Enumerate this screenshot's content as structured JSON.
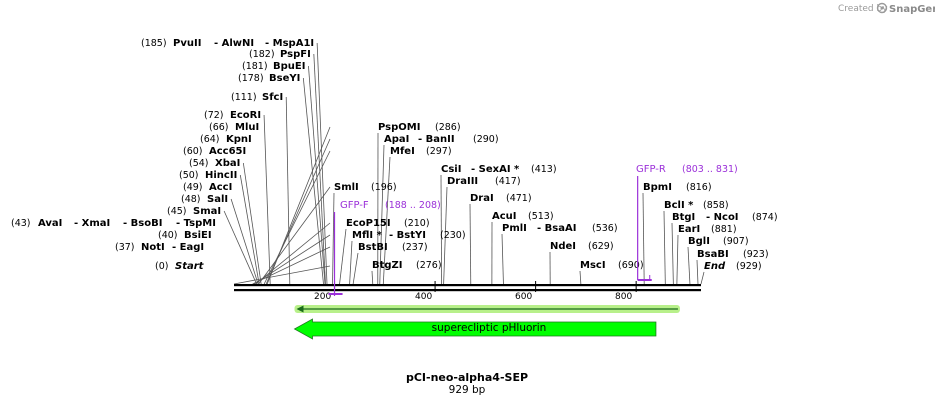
{
  "credit": {
    "prefix": "Created by",
    "brand": "SnapGene"
  },
  "map": {
    "name": "pCI-neo-alpha4-SEP",
    "length_label": "929 bp",
    "length": 929
  },
  "ruler": {
    "ticks": [
      200,
      400,
      600,
      800
    ],
    "tick_labels": [
      "200",
      "400",
      "600",
      "800"
    ]
  },
  "sites": [
    {
      "name": "Start",
      "pos": 0,
      "pos_label": "(0)",
      "italic": true
    },
    {
      "name": "NotI",
      "pos": 37,
      "pos_label": "(37)",
      "aka": "EagI"
    },
    {
      "name": "BsiEI",
      "pos": 40,
      "pos_label": "(40)"
    },
    {
      "name": "AvaI",
      "pos": 43,
      "pos_label": "(43)",
      "aka": "XmaI",
      "aka2": "BsoBI",
      "aka3": "TspMI"
    },
    {
      "name": "SmaI",
      "pos": 45,
      "pos_label": "(45)"
    },
    {
      "name": "SalI",
      "pos": 48,
      "pos_label": "(48)"
    },
    {
      "name": "AccI",
      "pos": 49,
      "pos_label": "(49)"
    },
    {
      "name": "HincII",
      "pos": 50,
      "pos_label": "(50)"
    },
    {
      "name": "XbaI",
      "pos": 54,
      "pos_label": "(54)"
    },
    {
      "name": "Acc65I",
      "pos": 60,
      "pos_label": "(60)"
    },
    {
      "name": "KpnI",
      "pos": 64,
      "pos_label": "(64)"
    },
    {
      "name": "MluI",
      "pos": 66,
      "pos_label": "(66)"
    },
    {
      "name": "EcoRI",
      "pos": 72,
      "pos_label": "(72)"
    },
    {
      "name": "SfcI",
      "pos": 111,
      "pos_label": "(111)"
    },
    {
      "name": "BseYI",
      "pos": 178,
      "pos_label": "(178)"
    },
    {
      "name": "BpuEI",
      "pos": 181,
      "pos_label": "(181)"
    },
    {
      "name": "PspFI",
      "pos": 182,
      "pos_label": "(182)"
    },
    {
      "name": "PvuII",
      "pos": 185,
      "pos_label": "(185)",
      "aka": "AlwNI",
      "aka2": "MspA1I"
    },
    {
      "name": "SmlI",
      "pos": 196,
      "pos_label": "(196)"
    },
    {
      "name": "EcoP15I",
      "pos": 210,
      "pos_label": "(210)"
    },
    {
      "name": "MflI *",
      "pos": 230,
      "pos_label": "(230)",
      "aka": "BstYI"
    },
    {
      "name": "BstBI",
      "pos": 237,
      "pos_label": "(237)"
    },
    {
      "name": "BtgZI",
      "pos": 276,
      "pos_label": "(276)"
    },
    {
      "name": "PspOMI",
      "pos": 286,
      "pos_label": "(286)"
    },
    {
      "name": "ApaI",
      "pos": 290,
      "pos_label": "(290)",
      "aka": "BanII"
    },
    {
      "name": "MfeI",
      "pos": 297,
      "pos_label": "(297)"
    },
    {
      "name": "CsiI",
      "pos": 413,
      "pos_label": "(413)",
      "aka": "SexAI *"
    },
    {
      "name": "DraIII",
      "pos": 417,
      "pos_label": "(417)"
    },
    {
      "name": "DraI",
      "pos": 471,
      "pos_label": "(471)"
    },
    {
      "name": "AcuI",
      "pos": 513,
      "pos_label": "(513)"
    },
    {
      "name": "PmlI",
      "pos": 536,
      "pos_label": "(536)",
      "aka": "BsaAI"
    },
    {
      "name": "NdeI",
      "pos": 629,
      "pos_label": "(629)"
    },
    {
      "name": "MscI",
      "pos": 690,
      "pos_label": "(690)"
    },
    {
      "name": "BpmI",
      "pos": 816,
      "pos_label": "(816)"
    },
    {
      "name": "BclI *",
      "pos": 858,
      "pos_label": "(858)"
    },
    {
      "name": "BtgI",
      "pos": 874,
      "pos_label": "(874)",
      "aka": "NcoI"
    },
    {
      "name": "EarI",
      "pos": 881,
      "pos_label": "(881)"
    },
    {
      "name": "BglI",
      "pos": 907,
      "pos_label": "(907)"
    },
    {
      "name": "BsaBI",
      "pos": 923,
      "pos_label": "(923)"
    },
    {
      "name": "End",
      "pos": 929,
      "pos_label": "(929)",
      "italic": true
    }
  ],
  "primers": [
    {
      "name": "GFP-F",
      "range": "(188 .. 208)",
      "start": 188,
      "end": 208,
      "direction": "forward"
    },
    {
      "name": "GFP-R",
      "range": "(803 .. 831)",
      "start": 803,
      "end": 831,
      "direction": "reverse"
    }
  ],
  "features": [
    {
      "name": "superecliptic pHluorin",
      "start": 188,
      "end": 905,
      "direction": "reverse",
      "color": "#00ff00"
    }
  ],
  "colors": {
    "primer": "#9b30d9",
    "feature": "#00ff00",
    "backbone": "#000000",
    "green_band": "#b8f08a"
  }
}
